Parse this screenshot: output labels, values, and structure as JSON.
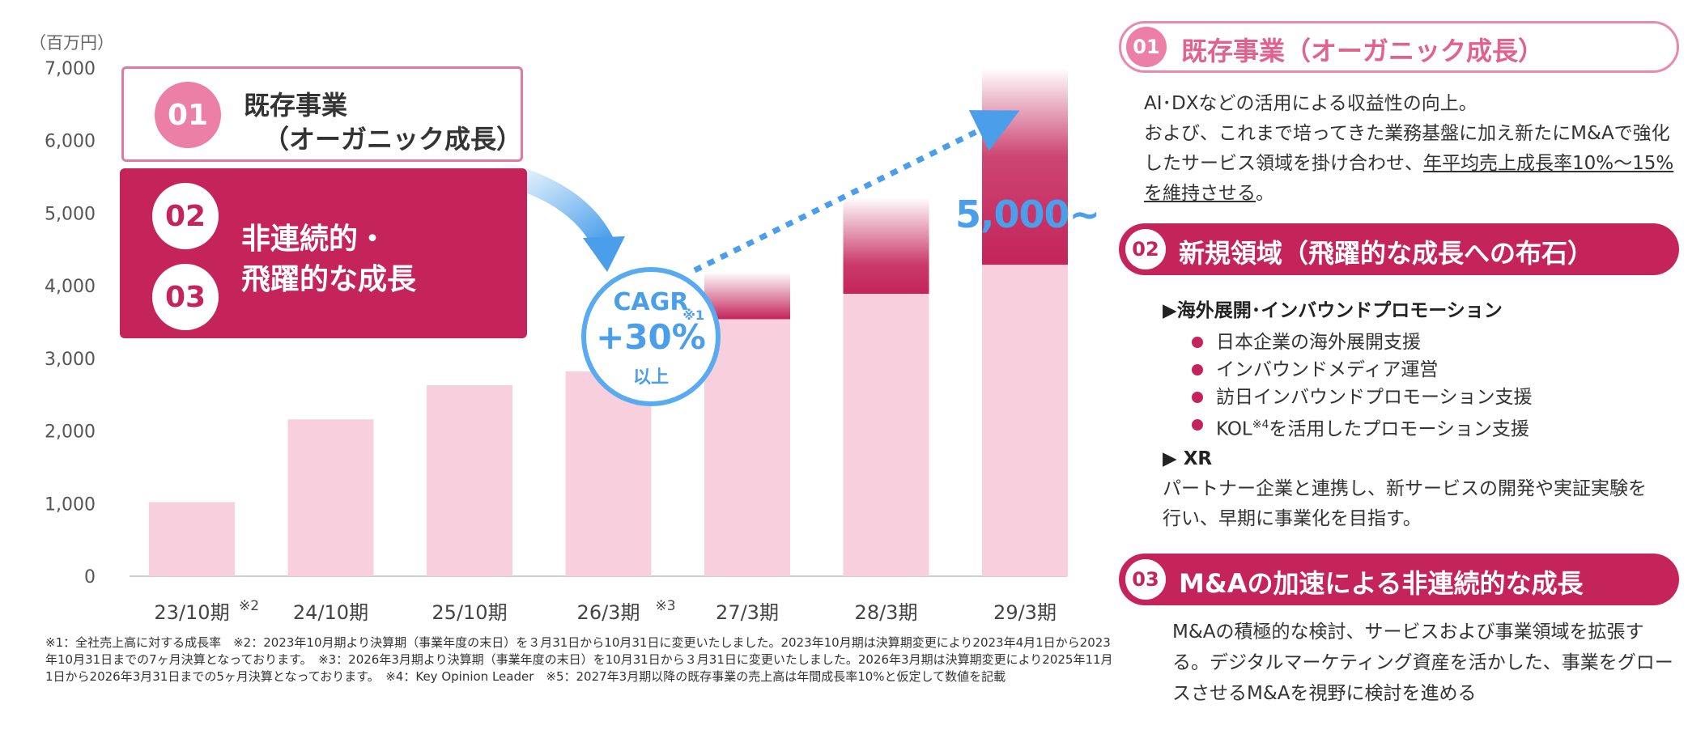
{
  "chart_data": {
    "type": "bar",
    "unit": "（百万円）",
    "yticks": [
      "7,000",
      "6,000",
      "5,000",
      "4,000",
      "3,000",
      "2,000",
      "1,000",
      "0"
    ],
    "ylim": [
      0,
      7000
    ],
    "categories": [
      "23/10期",
      "24/10期",
      "25/10期",
      "26/3期",
      "27/3期",
      "28/3期",
      "29/3期"
    ],
    "category_notes": [
      "※2",
      "",
      "",
      "※3",
      "",
      "",
      ""
    ],
    "series": [
      {
        "values": [
          1020,
          2160,
          2630,
          2820,
          3540,
          3890,
          4290
        ]
      },
      {
        "values": [
          0,
          0,
          0,
          0,
          650,
          1330,
          2710
        ]
      }
    ],
    "annotation_target": "5,000~",
    "grid": false,
    "colors": {
      "base": "#f7cfdd",
      "growth": "#c4245a",
      "arrow": "#4a9eea"
    }
  },
  "overlay": {
    "box01": {
      "num": "01",
      "line1": "既存事業",
      "line2": "（オーガニック成長）"
    },
    "box02": {
      "num02": "02",
      "num03": "03",
      "line1": "非連続的・",
      "line2": "飛躍的な成長"
    },
    "cagr": {
      "label": "CAGR",
      "note": "※1",
      "value": "+30%",
      "suffix": "以上"
    }
  },
  "footnote": "※1：全社売上高に対する成長率　※2：2023年10月期より決算期（事業年度の末日）を３月31日から10月31日に変更いたしました。2023年10月期は決算期変更により2023年4月1日から2023年10月31日までの7ヶ月決算となっております。　※3：2026年3月期より決算期（事業年度の末日）を10月31日から３月31日に変更いたしました。2026年3月期は決算期変更により2025年11月1日から2026年3月31日までの5ヶ月決算となっております。　※4：Key Opinion Leader　※5：2027年3月期以降の既存事業の売上高は年間成長率10%と仮定して数値を記載",
  "right": {
    "section1": {
      "num": "01",
      "title": "既存事業（オーガニック成長）",
      "text1": "AI･DXなどの活用による収益性の向上。",
      "text2": "および、これまで培ってきた業務基盤に加え新たにM&Aで強化したサービス領域を掛け合わせ、",
      "text_underline": "年平均売上成長率10%～15%を維持させる",
      "text_end": "。"
    },
    "section2": {
      "num": "02",
      "title": "新規領域（飛躍的な成長への布石）",
      "sub1": "▶海外展開･インバウンドプロモーション",
      "bullets": [
        "日本企業の海外展開支援",
        "インバウンドメディア運営",
        "訪日インバウンドプロモーション支援",
        "KOL"
      ],
      "bullet4_note": "※4",
      "bullet4_rest": "を活用したプロモーション支援",
      "sub2": "▶ XR",
      "xr_text": "パートナー企業と連携し、新サービスの開発や実証実験を行い、早期に事業化を目指す。"
    },
    "section3": {
      "num": "03",
      "title": "M&Aの加速による非連続的な成長",
      "text": "M&Aの積極的な検討、サービスおよび事業領域を拡張する。デジタルマーケティング資産を活かした、事業をグロースさせるM&Aを視野に検討を進める"
    }
  }
}
